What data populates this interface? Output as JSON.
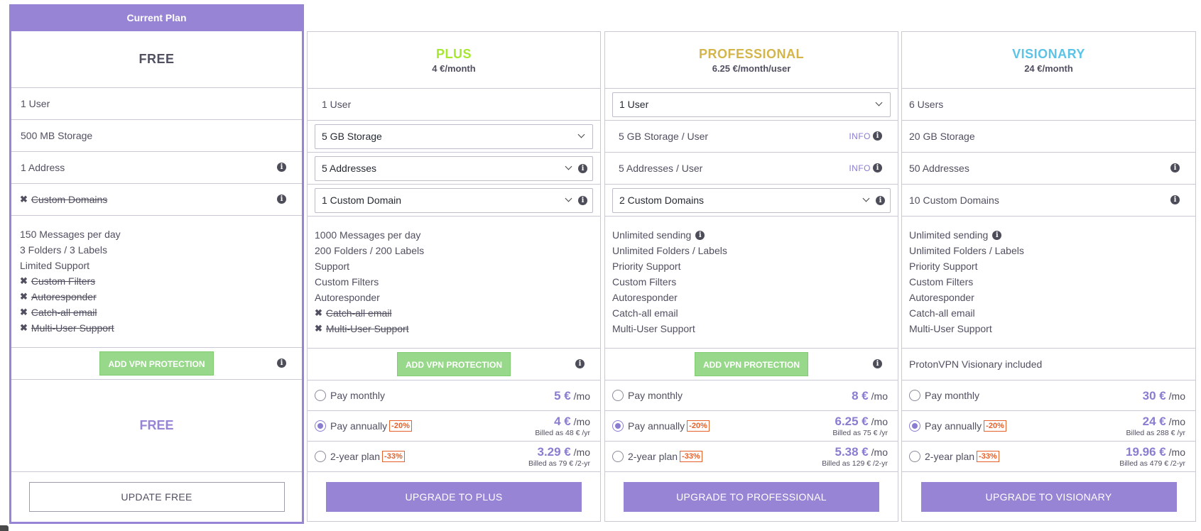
{
  "current_banner": "Current Plan",
  "colors": {
    "accent": "#9784d4",
    "plus": "#a6e82e",
    "professional": "#d3b54a",
    "visionary": "#5cc3e6",
    "discount": "#e4612b",
    "vpn": "#97d88a"
  },
  "plans": {
    "free": {
      "name": "FREE",
      "users": "1 User",
      "storage": "500 MB Storage",
      "addresses": "1 Address",
      "domains": "Custom Domains",
      "features": [
        "150 Messages per day",
        "3 Folders / 3 Labels",
        "Limited Support"
      ],
      "missing": [
        "Custom Filters",
        "Autoresponder",
        "Catch-all email",
        "Multi-User Support"
      ],
      "vpn_button": "ADD VPN PROTECTION",
      "price_label": "FREE",
      "action": "UPDATE FREE"
    },
    "plus": {
      "name": "PLUS",
      "price": "4 €/month",
      "users": "1 User",
      "storage": "5 GB Storage",
      "addresses": "5 Addresses",
      "domains": "1 Custom Domain",
      "features": [
        "1000 Messages per day",
        "200 Folders / 200 Labels",
        "Support",
        "Custom Filters",
        "Autoresponder"
      ],
      "missing": [
        "Catch-all email",
        "Multi-User Support"
      ],
      "vpn_button": "ADD VPN PROTECTION",
      "billing": {
        "monthly": {
          "label": "Pay monthly",
          "amount": "5 €",
          "unit": "/mo"
        },
        "annual": {
          "label": "Pay annually",
          "badge": "-20%",
          "amount": "4 €",
          "unit": "/mo",
          "billed": "Billed as 48 € /yr"
        },
        "two_year": {
          "label": "2-year plan",
          "badge": "-33%",
          "amount": "3.29 €",
          "unit": "/mo",
          "billed": "Billed as 79 € /2-yr"
        }
      },
      "action": "UPGRADE TO PLUS"
    },
    "professional": {
      "name": "PROFESSIONAL",
      "price": "6.25 €/month/user",
      "users": "1 User",
      "storage": "5 GB Storage / User",
      "addresses": "5 Addresses / User",
      "info_link": "INFO",
      "domains": "2 Custom Domains",
      "features": [
        "Unlimited sending",
        "Unlimited Folders / Labels",
        "Priority Support",
        "Custom Filters",
        "Autoresponder",
        "Catch-all email",
        "Multi-User Support"
      ],
      "vpn_button": "ADD VPN PROTECTION",
      "billing": {
        "monthly": {
          "label": "Pay monthly",
          "amount": "8 €",
          "unit": "/mo"
        },
        "annual": {
          "label": "Pay annually",
          "badge": "-20%",
          "amount": "6.25 €",
          "unit": "/mo",
          "billed": "Billed as 75 € /yr"
        },
        "two_year": {
          "label": "2-year plan",
          "badge": "-33%",
          "amount": "5.38 €",
          "unit": "/mo",
          "billed": "Billed as 129 € /2-yr"
        }
      },
      "action": "UPGRADE TO PROFESSIONAL"
    },
    "visionary": {
      "name": "VISIONARY",
      "price": "24 €/month",
      "users": "6 Users",
      "storage": "20 GB Storage",
      "addresses": "50 Addresses",
      "domains": "10 Custom Domains",
      "features": [
        "Unlimited sending",
        "Unlimited Folders / Labels",
        "Priority Support",
        "Custom Filters",
        "Autoresponder",
        "Catch-all email",
        "Multi-User Support"
      ],
      "vpn_text": "ProtonVPN Visionary included",
      "billing": {
        "monthly": {
          "label": "Pay monthly",
          "amount": "30 €",
          "unit": "/mo"
        },
        "annual": {
          "label": "Pay annually",
          "badge": "-20%",
          "amount": "24 €",
          "unit": "/mo",
          "billed": "Billed as 288 € /yr"
        },
        "two_year": {
          "label": "2-year plan",
          "badge": "-33%",
          "amount": "19.96 €",
          "unit": "/mo",
          "billed": "Billed as 479 € /2-yr"
        }
      },
      "action": "UPGRADE TO VISIONARY"
    }
  }
}
